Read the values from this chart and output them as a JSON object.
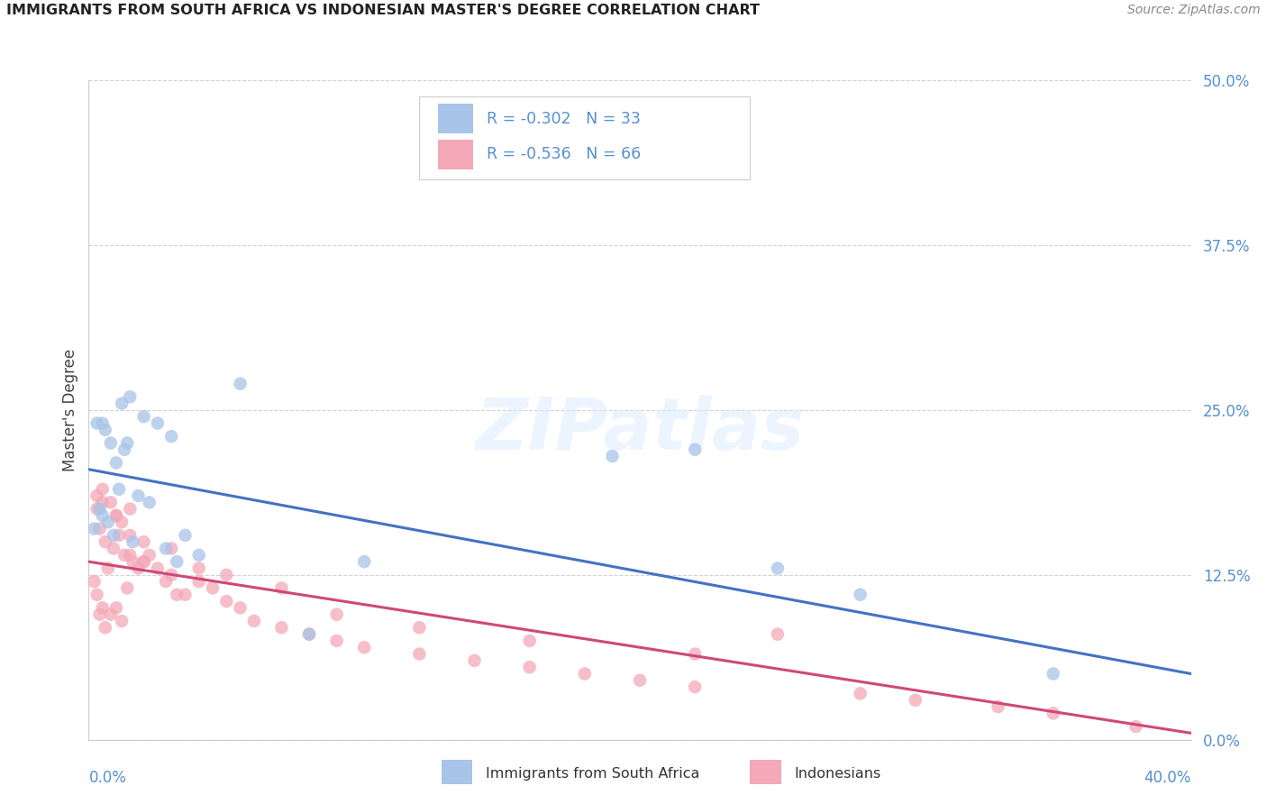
{
  "title": "IMMIGRANTS FROM SOUTH AFRICA VS INDONESIAN MASTER'S DEGREE CORRELATION CHART",
  "source": "Source: ZipAtlas.com",
  "ylabel": "Master's Degree",
  "ytick_values": [
    0.0,
    12.5,
    25.0,
    37.5,
    50.0
  ],
  "xlim": [
    0.0,
    40.0
  ],
  "ylim": [
    0.0,
    50.0
  ],
  "blue_R": -0.302,
  "blue_N": 33,
  "pink_R": -0.536,
  "pink_N": 66,
  "blue_color": "#a8c4e8",
  "pink_color": "#f4a8b8",
  "blue_line_color": "#4472c4",
  "pink_line_color": "#d04878",
  "tick_color": "#5590d0",
  "watermark_text": "ZIPatlas",
  "legend_label_blue": "Immigrants from South Africa",
  "legend_label_pink": "Indonesians",
  "blue_line_start_y": 20.5,
  "blue_line_end_y": 5.0,
  "pink_line_start_y": 13.5,
  "pink_line_end_y": 0.5,
  "blue_scatter_x": [
    0.5,
    1.2,
    1.5,
    2.0,
    0.3,
    0.6,
    0.8,
    1.0,
    1.1,
    1.3,
    2.5,
    3.0,
    1.8,
    2.2,
    0.4,
    0.7,
    0.9,
    1.6,
    3.5,
    4.0,
    0.2,
    0.5,
    1.4,
    2.8,
    3.2,
    5.5,
    22.0,
    19.0,
    25.0,
    28.0,
    35.0,
    10.0,
    8.0
  ],
  "blue_scatter_y": [
    24.0,
    25.5,
    26.0,
    24.5,
    24.0,
    23.5,
    22.5,
    21.0,
    19.0,
    22.0,
    24.0,
    23.0,
    18.5,
    18.0,
    17.5,
    16.5,
    15.5,
    15.0,
    15.5,
    14.0,
    16.0,
    17.0,
    22.5,
    14.5,
    13.5,
    27.0,
    22.0,
    21.5,
    13.0,
    11.0,
    5.0,
    13.5,
    8.0
  ],
  "pink_scatter_x": [
    0.3,
    0.5,
    0.8,
    1.0,
    1.2,
    1.5,
    0.4,
    0.6,
    0.9,
    1.1,
    1.3,
    1.6,
    1.8,
    2.0,
    2.2,
    2.5,
    0.2,
    0.7,
    1.4,
    3.0,
    3.5,
    4.0,
    4.5,
    5.0,
    0.3,
    0.5,
    0.8,
    1.0,
    1.2,
    0.4,
    0.6,
    1.5,
    2.0,
    2.8,
    3.2,
    5.5,
    6.0,
    7.0,
    8.0,
    9.0,
    10.0,
    12.0,
    14.0,
    16.0,
    18.0,
    20.0,
    22.0,
    25.0,
    28.0,
    30.0,
    33.0,
    35.0,
    38.0,
    0.3,
    0.5,
    1.0,
    1.5,
    2.0,
    3.0,
    4.0,
    5.0,
    7.0,
    9.0,
    12.0,
    16.0,
    22.0
  ],
  "pink_scatter_y": [
    18.5,
    19.0,
    18.0,
    17.0,
    16.5,
    17.5,
    16.0,
    15.0,
    14.5,
    15.5,
    14.0,
    13.5,
    13.0,
    13.5,
    14.0,
    13.0,
    12.0,
    13.0,
    11.5,
    12.5,
    11.0,
    12.0,
    11.5,
    10.5,
    11.0,
    10.0,
    9.5,
    10.0,
    9.0,
    9.5,
    8.5,
    14.0,
    13.5,
    12.0,
    11.0,
    10.0,
    9.0,
    8.5,
    8.0,
    7.5,
    7.0,
    6.5,
    6.0,
    5.5,
    5.0,
    4.5,
    4.0,
    8.0,
    3.5,
    3.0,
    2.5,
    2.0,
    1.0,
    17.5,
    18.0,
    17.0,
    15.5,
    15.0,
    14.5,
    13.0,
    12.5,
    11.5,
    9.5,
    8.5,
    7.5,
    6.5
  ]
}
